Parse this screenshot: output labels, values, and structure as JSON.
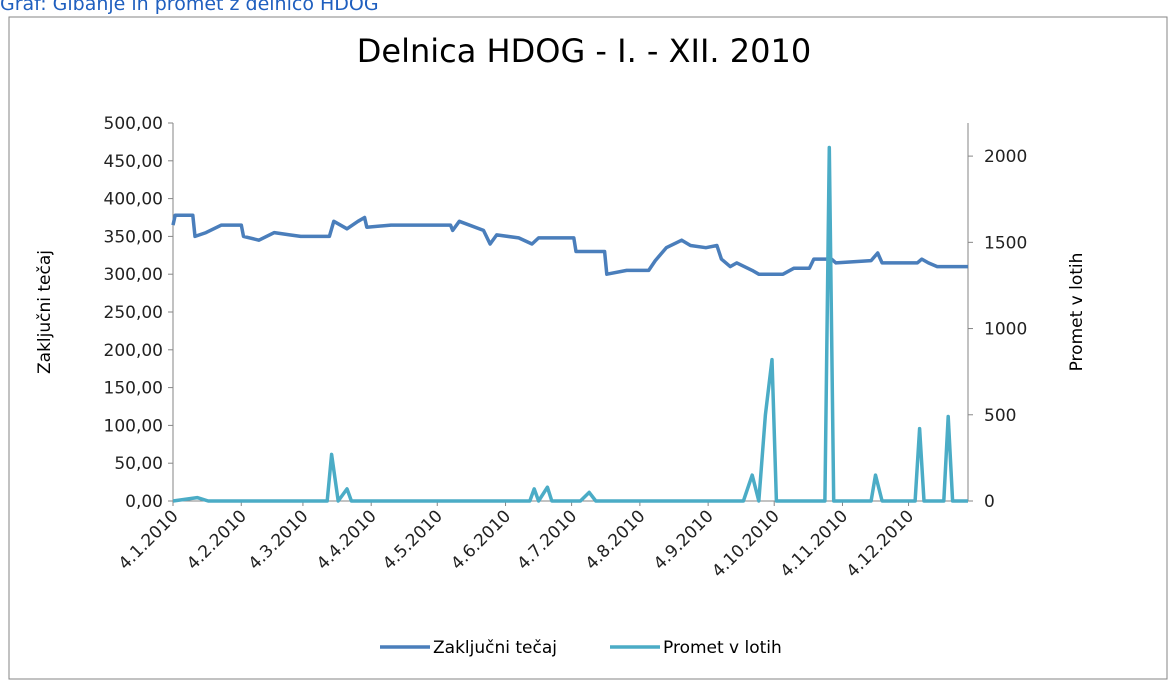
{
  "caption": "Graf: Gibanje in promet z delnico HDOG",
  "chart_data": {
    "type": "line",
    "title": "Delnica HDOG - I. - XII. 2010",
    "ylabel": "Zaključni tečaj",
    "y2label": "Promet v lotih",
    "xlim": [
      "4.1.2010",
      "31.12.2010"
    ],
    "xticks": [
      "4.1.2010",
      "4.2.2010",
      "4.3.2010",
      "4.4.2010",
      "4.5.2010",
      "4.6.2010",
      "4.7.2010",
      "4.8.2010",
      "4.9.2010",
      "4.10.2010",
      "4.11.2010",
      "4.12.2010"
    ],
    "ylim": [
      0,
      500
    ],
    "yticks": [
      {
        "value": 0,
        "label": "0,00"
      },
      {
        "value": 50,
        "label": "50,00"
      },
      {
        "value": 100,
        "label": "100,00"
      },
      {
        "value": 150,
        "label": "150,00"
      },
      {
        "value": 200,
        "label": "200,00"
      },
      {
        "value": 250,
        "label": "250,00"
      },
      {
        "value": 300,
        "label": "300,00"
      },
      {
        "value": 350,
        "label": "350,00"
      },
      {
        "value": 400,
        "label": "400,00"
      },
      {
        "value": 450,
        "label": "450,00"
      },
      {
        "value": 500,
        "label": "500,00"
      }
    ],
    "y2lim": [
      0,
      2192
    ],
    "y2ticks": [
      0,
      500,
      1000,
      1500,
      2000
    ],
    "legend": "bottom",
    "series": [
      {
        "name": "Zaključni tečaj",
        "color": "#4a7ebb",
        "axis": "y",
        "x": [
          "4.1.2010",
          "5.1.2010",
          "13.1.2010",
          "14.1.2010",
          "19.1.2010",
          "26.1.2010",
          "4.2.2010",
          "5.2.2010",
          "12.2.2010",
          "19.2.2010",
          "26.2.2010",
          "3.3.2010",
          "16.3.2010",
          "18.3.2010",
          "24.3.2010",
          "29.3.2010",
          "1.4.2010",
          "2.4.2010",
          "13.4.2010",
          "10.5.2010",
          "11.5.2010",
          "14.5.2010",
          "25.5.2010",
          "28.5.2010",
          "31.5.2010",
          "10.6.2010",
          "16.6.2010",
          "19.6.2010",
          "5.7.2010",
          "6.7.2010",
          "19.7.2010",
          "20.7.2010",
          "29.7.2010",
          "8.8.2010",
          "11.8.2010",
          "16.8.2010",
          "23.8.2010",
          "27.8.2010",
          "3.9.2010",
          "8.9.2010",
          "10.9.2010",
          "14.9.2010",
          "17.9.2010",
          "24.9.2010",
          "27.9.2010",
          "8.10.2010",
          "13.10.2010",
          "20.10.2010",
          "22.10.2010",
          "30.10.2010",
          "1.11.2010",
          "17.11.2010",
          "20.11.2010",
          "22.11.2010",
          "8.12.2010",
          "10.12.2010",
          "13.12.2010",
          "17.12.2010",
          "31.12.2010"
        ],
        "values": [
          365,
          378,
          378,
          350,
          355,
          365,
          365,
          350,
          345,
          355,
          352,
          350,
          350,
          370,
          360,
          370,
          375,
          362,
          365,
          365,
          358,
          370,
          358,
          340,
          352,
          348,
          340,
          348,
          348,
          330,
          330,
          300,
          305,
          305,
          318,
          335,
          345,
          338,
          335,
          338,
          320,
          310,
          315,
          305,
          300,
          300,
          308,
          308,
          320,
          320,
          315,
          318,
          328,
          315,
          315,
          320,
          315,
          310,
          310
        ]
      },
      {
        "name": "Promet v lotih",
        "color": "#4bacc6",
        "axis": "y2",
        "x": [
          "4.1.2010",
          "15.1.2010",
          "20.1.2010",
          "2.3.2010",
          "15.3.2010",
          "17.3.2010",
          "20.3.2010",
          "24.3.2010",
          "26.3.2010",
          "15.6.2010",
          "17.6.2010",
          "19.6.2010",
          "23.6.2010",
          "25.6.2010",
          "8.7.2010",
          "12.7.2010",
          "15.7.2010",
          "20.9.2010",
          "24.9.2010",
          "27.9.2010",
          "30.9.2010",
          "3.10.2010",
          "5.10.2010",
          "27.10.2010",
          "29.10.2010",
          "31.10.2010",
          "17.11.2010",
          "19.11.2010",
          "22.11.2010",
          "7.12.2010",
          "9.12.2010",
          "11.12.2010",
          "20.12.2010",
          "22.12.2010",
          "24.12.2010",
          "31.12.2010"
        ],
        "values": [
          0,
          20,
          0,
          0,
          0,
          270,
          0,
          70,
          0,
          0,
          70,
          0,
          80,
          0,
          0,
          50,
          0,
          0,
          150,
          0,
          500,
          820,
          0,
          0,
          2050,
          0,
          0,
          150,
          0,
          0,
          420,
          0,
          0,
          490,
          0,
          0
        ]
      }
    ]
  }
}
